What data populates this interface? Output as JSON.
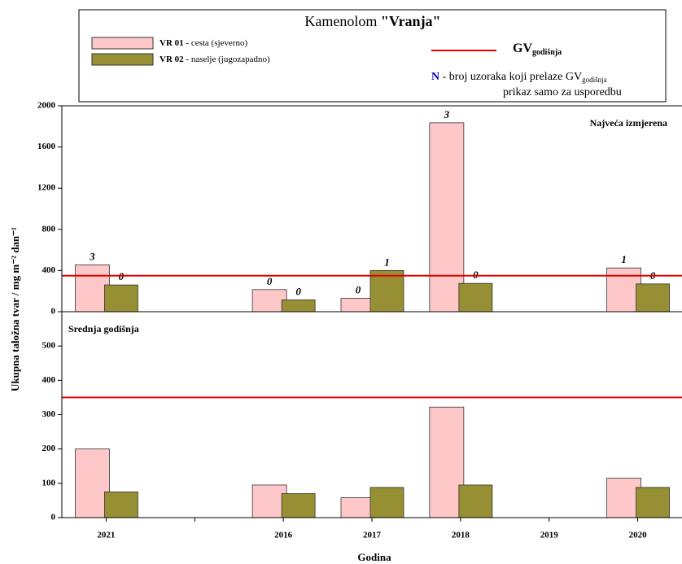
{
  "chart_data": {
    "type": "bar",
    "title": {
      "text": "Kamenolom ",
      "emphasis": "\"Vranja\""
    },
    "categories": [
      "2021",
      null,
      "2016",
      "2017",
      "2018",
      "2019",
      "2020"
    ],
    "x_label": "Godina",
    "y_label": "Ukupna taložna tvar / mg m⁻² dan⁻¹",
    "series": [
      {
        "name": "VR 01 -",
        "description": "cesta (sjeverno)",
        "color": "#ffc8c8"
      },
      {
        "name": "VR 02 -",
        "description": "naselje (jugozapadno)",
        "color": "#968f33"
      }
    ],
    "reference_line": {
      "value": 350,
      "color": "#e00000",
      "label": "GV",
      "label_sub": "godišnja"
    },
    "note": {
      "symbol": "N",
      "text": " - broj uzoraka koji prelaze GV",
      "text_sub": "godišnja",
      "line2": "prikaz samo za usporedbu"
    },
    "panels": [
      {
        "annotation": "Najveća izmjerena",
        "ylim": [
          0,
          2000
        ],
        "yticks": [
          0,
          400,
          800,
          1200,
          1600,
          2000
        ],
        "values": [
          [
            455,
            null,
            215,
            130,
            1835,
            null,
            425
          ],
          [
            260,
            null,
            115,
            400,
            275,
            null,
            270
          ]
        ],
        "counts": [
          [
            3,
            null,
            0,
            0,
            3,
            null,
            1
          ],
          [
            0,
            null,
            0,
            1,
            0,
            null,
            0
          ]
        ]
      },
      {
        "annotation": "Srednja godišnja",
        "ylim": [
          0,
          600
        ],
        "yticks": [
          0,
          100,
          200,
          300,
          400,
          500
        ],
        "values": [
          [
            200,
            null,
            95,
            58,
            322,
            null,
            115
          ],
          [
            75,
            null,
            70,
            88,
            95,
            null,
            88
          ]
        ]
      }
    ]
  }
}
